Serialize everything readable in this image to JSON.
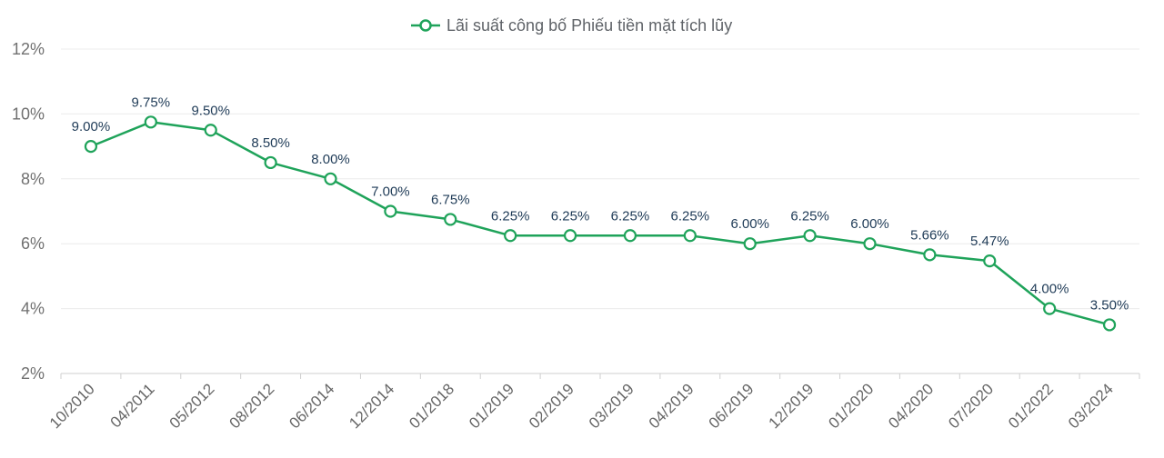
{
  "chart_data": {
    "type": "line",
    "title": "",
    "xlabel": "",
    "ylabel": "",
    "ylim": [
      2,
      12
    ],
    "yticks": [
      2,
      4,
      6,
      8,
      10,
      12
    ],
    "ytick_labels": [
      "2%",
      "4%",
      "6%",
      "8%",
      "10%",
      "12%"
    ],
    "grid": true,
    "legend_position": "top-center",
    "categories": [
      "10/2010",
      "04/2011",
      "05/2012",
      "08/2012",
      "06/2014",
      "12/2014",
      "01/2018",
      "01/2019",
      "02/2019",
      "03/2019",
      "04/2019",
      "06/2019",
      "12/2019",
      "01/2020",
      "04/2020",
      "07/2020",
      "01/2022",
      "03/2024"
    ],
    "series": [
      {
        "name": "Lãi suất công bố Phiếu tiền mặt tích lũy",
        "color": "#1fa35a",
        "values": [
          9.0,
          9.75,
          9.5,
          8.5,
          8.0,
          7.0,
          6.75,
          6.25,
          6.25,
          6.25,
          6.25,
          6.0,
          6.25,
          6.0,
          5.66,
          5.47,
          4.0,
          3.5
        ],
        "labels": [
          "9.00%",
          "9.75%",
          "9.50%",
          "8.50%",
          "8.00%",
          "7.00%",
          "6.75%",
          "6.25%",
          "6.25%",
          "6.25%",
          "6.25%",
          "6.00%",
          "6.25%",
          "6.00%",
          "5.66%",
          "5.47%",
          "4.00%",
          "3.50%"
        ]
      }
    ]
  }
}
